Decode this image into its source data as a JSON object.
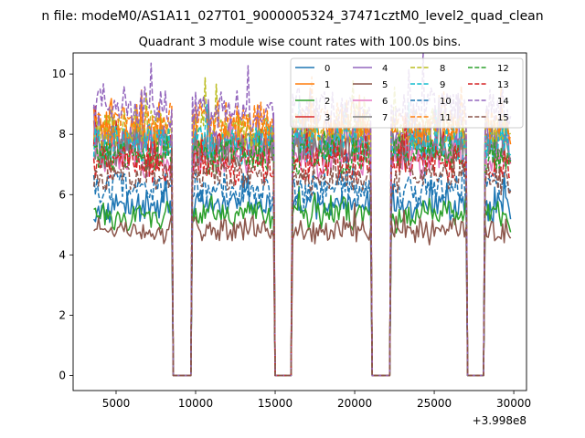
{
  "figure": {
    "suptitle": "n file: modeM0/AS1A11_027T01_9000005324_37471cztM0_level2_quad_clean",
    "title": "Quadrant 3 module wise count rates with 100.0s bins.",
    "x_offset_label": "+3.998e8"
  },
  "chart_data": {
    "type": "line",
    "title": "Quadrant 3 module wise count rates with 100.0s bins.",
    "xlabel": "",
    "ylabel": "",
    "x_offset": 399800000,
    "xlim": [
      2300,
      30800
    ],
    "ylim": [
      -0.5,
      10.7
    ],
    "x_ticks": [
      5000,
      10000,
      15000,
      20000,
      25000,
      30000
    ],
    "y_ticks": [
      0,
      2,
      4,
      6,
      8,
      10
    ],
    "bin_width_s": 100,
    "gaps": [
      [
        8600,
        9700
      ],
      [
        15000,
        16000
      ],
      [
        21100,
        22200
      ],
      [
        27100,
        28100
      ]
    ],
    "data_range": [
      3600,
      29800
    ],
    "grid": false,
    "legend": "top-right, 4 columns",
    "series": [
      {
        "name": "0",
        "color": "#1f77b4",
        "style": "solid",
        "level": 5.6
      },
      {
        "name": "1",
        "color": "#ff7f0e",
        "style": "solid",
        "level": 8.0
      },
      {
        "name": "2",
        "color": "#2ca02c",
        "style": "solid",
        "level": 5.3
      },
      {
        "name": "3",
        "color": "#d62728",
        "style": "solid",
        "level": 7.4
      },
      {
        "name": "4",
        "color": "#9467bd",
        "style": "solid",
        "level": 7.8
      },
      {
        "name": "5",
        "color": "#8c564b",
        "style": "solid",
        "level": 4.8
      },
      {
        "name": "6",
        "color": "#e377c2",
        "style": "solid",
        "level": 7.2
      },
      {
        "name": "7",
        "color": "#7f7f7f",
        "style": "solid",
        "level": 7.6
      },
      {
        "name": "8",
        "color": "#bcbd22",
        "style": "dashed",
        "level": 8.2
      },
      {
        "name": "9",
        "color": "#17becf",
        "style": "dashed",
        "level": 7.7
      },
      {
        "name": "10",
        "color": "#1f77b4",
        "style": "dashed",
        "level": 6.2
      },
      {
        "name": "11",
        "color": "#ff7f0e",
        "style": "dashed",
        "level": 8.4
      },
      {
        "name": "12",
        "color": "#2ca02c",
        "style": "dashed",
        "level": 7.3
      },
      {
        "name": "13",
        "color": "#d62728",
        "style": "dashed",
        "level": 7.0
      },
      {
        "name": "14",
        "color": "#9467bd",
        "style": "dashed",
        "level": 8.9
      },
      {
        "name": "15",
        "color": "#8c564b",
        "style": "dashed",
        "level": 6.6
      }
    ]
  }
}
